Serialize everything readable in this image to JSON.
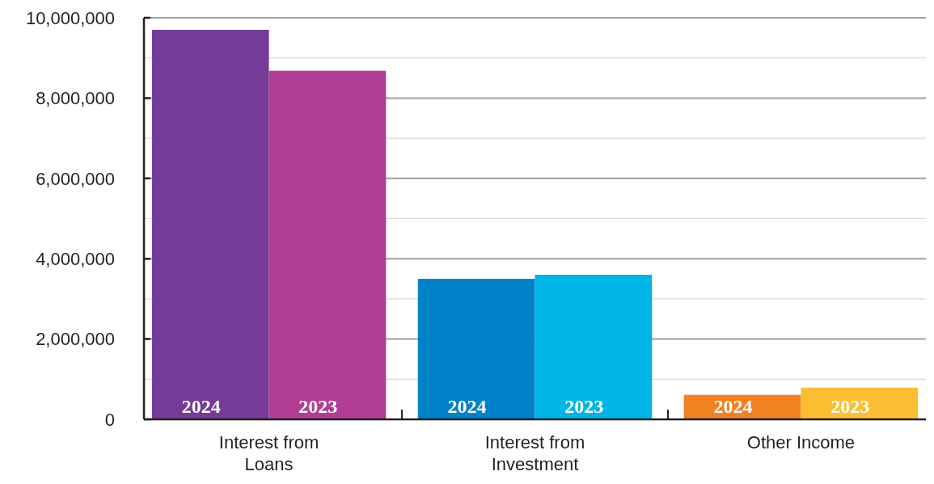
{
  "chart_data": {
    "type": "bar",
    "categories": [
      "Interest from Loans",
      "Interest from Investment",
      "Other Income"
    ],
    "series": [
      {
        "name": "2024",
        "colors": [
          "#743c96",
          "#0082c8",
          "#f28122"
        ],
        "values": [
          9700000,
          3500000,
          610000
        ]
      },
      {
        "name": "2023",
        "colors": [
          "#b23d94",
          "#00b4e6",
          "#fcbf33"
        ],
        "values": [
          8680000,
          3600000,
          790000
        ]
      }
    ],
    "ylim": [
      0,
      10000000
    ],
    "yticks": [
      0,
      {
        "value": 1000000,
        "label": null
      },
      {
        "value": 2000000,
        "label": "2,000,000"
      },
      {
        "value": 3000000,
        "label": null
      },
      {
        "value": 4000000,
        "label": "4,000,000"
      },
      {
        "value": 5000000,
        "label": null
      },
      {
        "value": 6000000,
        "label": "6,000,000"
      },
      {
        "value": 7000000,
        "label": null
      },
      {
        "value": 8000000,
        "label": "8,000,000"
      },
      {
        "value": 9000000,
        "label": null
      },
      {
        "value": 10000000,
        "label": "10,000,000"
      }
    ],
    "grid": "y"
  }
}
